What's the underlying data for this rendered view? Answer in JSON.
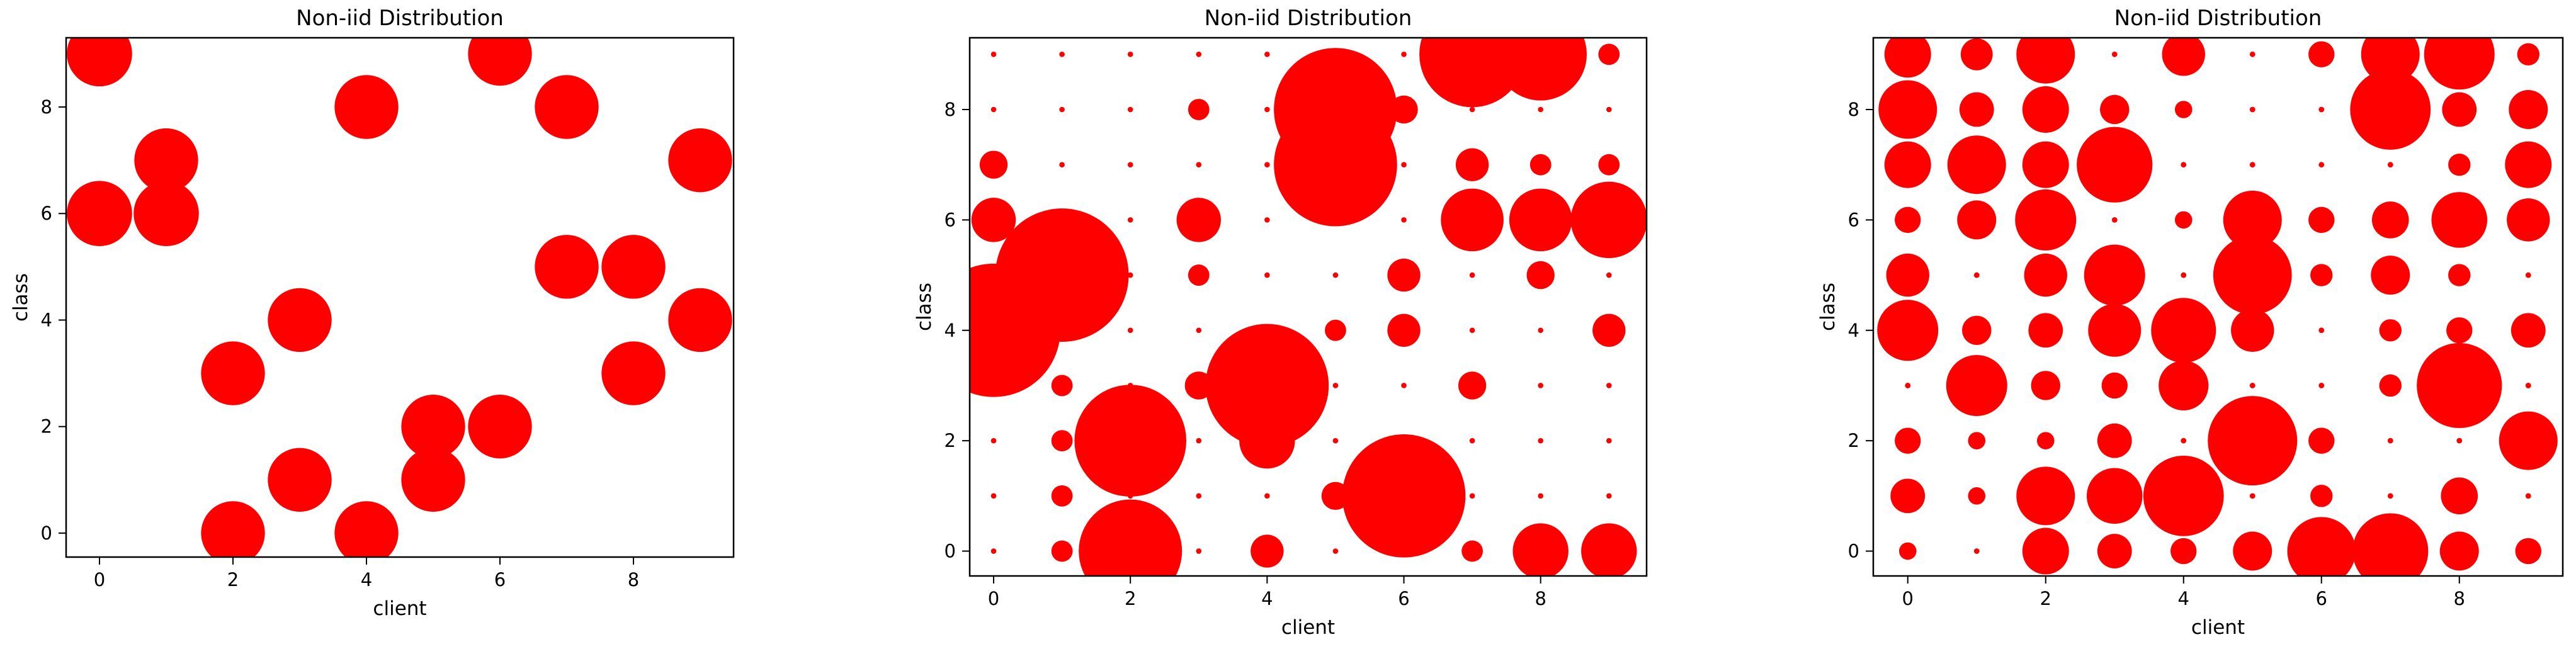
{
  "colors": {
    "marker": "#ff0000",
    "axis": "#000000",
    "background": "#ffffff"
  },
  "chart_data": [
    {
      "type": "scatter",
      "title": "Non-iid Distribution",
      "xlabel": "client",
      "ylabel": "class",
      "xlim": [
        -0.5,
        9.5
      ],
      "ylim": [
        -0.45,
        9.3
      ],
      "xticks": [
        0,
        2,
        4,
        6,
        8
      ],
      "yticks": [
        0,
        2,
        4,
        6,
        8
      ],
      "grid": false,
      "marker_color": "#ff0000",
      "bubble_max_value": 1,
      "bubble_max_radius_data": 0.5,
      "bubble_min_radius_data": 0.07,
      "points": [
        {
          "x": 0,
          "y": 9,
          "value": 0.95
        },
        {
          "x": 0,
          "y": 6,
          "value": 0.95
        },
        {
          "x": 1,
          "y": 7,
          "value": 0.9
        },
        {
          "x": 1,
          "y": 6,
          "value": 0.95
        },
        {
          "x": 2,
          "y": 3,
          "value": 0.9
        },
        {
          "x": 2,
          "y": 0,
          "value": 0.9
        },
        {
          "x": 3,
          "y": 4,
          "value": 0.9
        },
        {
          "x": 3,
          "y": 1,
          "value": 0.9
        },
        {
          "x": 4,
          "y": 8,
          "value": 0.9
        },
        {
          "x": 4,
          "y": 0,
          "value": 0.9
        },
        {
          "x": 5,
          "y": 2,
          "value": 0.9
        },
        {
          "x": 5,
          "y": 1,
          "value": 0.9
        },
        {
          "x": 6,
          "y": 9,
          "value": 0.9
        },
        {
          "x": 6,
          "y": 2,
          "value": 0.9
        },
        {
          "x": 7,
          "y": 8,
          "value": 0.9
        },
        {
          "x": 7,
          "y": 5,
          "value": 0.9
        },
        {
          "x": 8,
          "y": 5,
          "value": 0.9
        },
        {
          "x": 8,
          "y": 3,
          "value": 0.9
        },
        {
          "x": 9,
          "y": 7,
          "value": 0.9
        },
        {
          "x": 9,
          "y": 4,
          "value": 0.9
        }
      ]
    },
    {
      "type": "scatter",
      "title": "Non-iid Distribution",
      "xlabel": "client",
      "ylabel": "class",
      "xlim": [
        -0.35,
        9.55
      ],
      "ylim": [
        -0.45,
        9.3
      ],
      "xticks": [
        0,
        2,
        4,
        6,
        8
      ],
      "yticks": [
        0,
        2,
        4,
        6,
        8
      ],
      "grid": false,
      "marker_color": "#ff0000",
      "bubble_max_value": 1,
      "bubble_max_radius_data": 1.2,
      "bubble_min_radius_data": 0.04,
      "points": [
        {
          "x": 0,
          "y": 9,
          "value": 0
        },
        {
          "x": 0,
          "y": 8,
          "value": 0
        },
        {
          "x": 0,
          "y": 7,
          "value": 0.02
        },
        {
          "x": 0,
          "y": 6,
          "value": 0.06
        },
        {
          "x": 0,
          "y": 5,
          "value": 0
        },
        {
          "x": 0,
          "y": 4,
          "value": 0.65
        },
        {
          "x": 0,
          "y": 3,
          "value": 0.01
        },
        {
          "x": 0,
          "y": 2,
          "value": 0
        },
        {
          "x": 0,
          "y": 1,
          "value": 0
        },
        {
          "x": 0,
          "y": 0,
          "value": 0
        },
        {
          "x": 1,
          "y": 9,
          "value": 0
        },
        {
          "x": 1,
          "y": 8,
          "value": 0
        },
        {
          "x": 1,
          "y": 7,
          "value": 0
        },
        {
          "x": 1,
          "y": 6,
          "value": 0
        },
        {
          "x": 1,
          "y": 5,
          "value": 0.65
        },
        {
          "x": 1,
          "y": 4,
          "value": 0
        },
        {
          "x": 1,
          "y": 3,
          "value": 0.01
        },
        {
          "x": 1,
          "y": 2,
          "value": 0.01
        },
        {
          "x": 1,
          "y": 1,
          "value": 0.01
        },
        {
          "x": 1,
          "y": 0,
          "value": 0.01
        },
        {
          "x": 2,
          "y": 9,
          "value": 0
        },
        {
          "x": 2,
          "y": 8,
          "value": 0
        },
        {
          "x": 2,
          "y": 7,
          "value": 0
        },
        {
          "x": 2,
          "y": 6,
          "value": 0
        },
        {
          "x": 2,
          "y": 5,
          "value": 0
        },
        {
          "x": 2,
          "y": 4,
          "value": 0
        },
        {
          "x": 2,
          "y": 3,
          "value": 0
        },
        {
          "x": 2,
          "y": 2,
          "value": 0.45
        },
        {
          "x": 2,
          "y": 1,
          "value": 0
        },
        {
          "x": 2,
          "y": 0,
          "value": 0.38
        },
        {
          "x": 3,
          "y": 9,
          "value": 0
        },
        {
          "x": 3,
          "y": 8,
          "value": 0.01
        },
        {
          "x": 3,
          "y": 7,
          "value": 0
        },
        {
          "x": 3,
          "y": 6,
          "value": 0.06
        },
        {
          "x": 3,
          "y": 5,
          "value": 0.01
        },
        {
          "x": 3,
          "y": 4,
          "value": 0
        },
        {
          "x": 3,
          "y": 3,
          "value": 0.02
        },
        {
          "x": 3,
          "y": 2,
          "value": 0
        },
        {
          "x": 3,
          "y": 1,
          "value": 0
        },
        {
          "x": 3,
          "y": 0,
          "value": 0
        },
        {
          "x": 4,
          "y": 9,
          "value": 0
        },
        {
          "x": 4,
          "y": 8,
          "value": 0
        },
        {
          "x": 4,
          "y": 7,
          "value": 0
        },
        {
          "x": 4,
          "y": 6,
          "value": 0
        },
        {
          "x": 4,
          "y": 5,
          "value": 0
        },
        {
          "x": 4,
          "y": 4,
          "value": 0
        },
        {
          "x": 4,
          "y": 3,
          "value": 0.55
        },
        {
          "x": 4,
          "y": 2,
          "value": 0.1
        },
        {
          "x": 4,
          "y": 1,
          "value": 0
        },
        {
          "x": 4,
          "y": 0,
          "value": 0.03
        },
        {
          "x": 5,
          "y": 9,
          "value": 0
        },
        {
          "x": 5,
          "y": 8,
          "value": 0.55
        },
        {
          "x": 5,
          "y": 7,
          "value": 0.55
        },
        {
          "x": 5,
          "y": 6,
          "value": 0
        },
        {
          "x": 5,
          "y": 5,
          "value": 0
        },
        {
          "x": 5,
          "y": 4,
          "value": 0.01
        },
        {
          "x": 5,
          "y": 3,
          "value": 0
        },
        {
          "x": 5,
          "y": 2,
          "value": 0
        },
        {
          "x": 5,
          "y": 1,
          "value": 0.02
        },
        {
          "x": 5,
          "y": 0,
          "value": 0
        },
        {
          "x": 6,
          "y": 9,
          "value": 0
        },
        {
          "x": 6,
          "y": 8,
          "value": 0.02
        },
        {
          "x": 6,
          "y": 7,
          "value": 0
        },
        {
          "x": 6,
          "y": 6,
          "value": 0
        },
        {
          "x": 6,
          "y": 5,
          "value": 0.03
        },
        {
          "x": 6,
          "y": 4,
          "value": 0.03
        },
        {
          "x": 6,
          "y": 3,
          "value": 0
        },
        {
          "x": 6,
          "y": 2,
          "value": 0
        },
        {
          "x": 6,
          "y": 1,
          "value": 0.55
        },
        {
          "x": 6,
          "y": 0,
          "value": 0
        },
        {
          "x": 7,
          "y": 9,
          "value": 0.4
        },
        {
          "x": 7,
          "y": 8,
          "value": 0
        },
        {
          "x": 7,
          "y": 7,
          "value": 0.03
        },
        {
          "x": 7,
          "y": 6,
          "value": 0.13
        },
        {
          "x": 7,
          "y": 5,
          "value": 0
        },
        {
          "x": 7,
          "y": 4,
          "value": 0
        },
        {
          "x": 7,
          "y": 3,
          "value": 0.02
        },
        {
          "x": 7,
          "y": 2,
          "value": 0
        },
        {
          "x": 7,
          "y": 1,
          "value": 0
        },
        {
          "x": 7,
          "y": 0,
          "value": 0.01
        },
        {
          "x": 8,
          "y": 9,
          "value": 0.3
        },
        {
          "x": 8,
          "y": 8,
          "value": 0
        },
        {
          "x": 8,
          "y": 7,
          "value": 0.01
        },
        {
          "x": 8,
          "y": 6,
          "value": 0.13
        },
        {
          "x": 8,
          "y": 5,
          "value": 0.02
        },
        {
          "x": 8,
          "y": 4,
          "value": 0
        },
        {
          "x": 8,
          "y": 3,
          "value": 0
        },
        {
          "x": 8,
          "y": 2,
          "value": 0
        },
        {
          "x": 8,
          "y": 1,
          "value": 0
        },
        {
          "x": 8,
          "y": 0,
          "value": 0.1
        },
        {
          "x": 9,
          "y": 9,
          "value": 0.01
        },
        {
          "x": 9,
          "y": 8,
          "value": 0
        },
        {
          "x": 9,
          "y": 7,
          "value": 0.01
        },
        {
          "x": 9,
          "y": 6,
          "value": 0.2
        },
        {
          "x": 9,
          "y": 5,
          "value": 0
        },
        {
          "x": 9,
          "y": 4,
          "value": 0.03
        },
        {
          "x": 9,
          "y": 3,
          "value": 0
        },
        {
          "x": 9,
          "y": 2,
          "value": 0
        },
        {
          "x": 9,
          "y": 1,
          "value": 0
        },
        {
          "x": 9,
          "y": 0,
          "value": 0.1
        }
      ]
    },
    {
      "type": "scatter",
      "title": "Non-iid Distribution",
      "xlabel": "client",
      "ylabel": "class",
      "xlim": [
        -0.5,
        9.5
      ],
      "ylim": [
        -0.45,
        9.3
      ],
      "xticks": [
        0,
        2,
        4,
        6,
        8
      ],
      "yticks": [
        0,
        2,
        4,
        6,
        8
      ],
      "grid": false,
      "marker_color": "#ff0000",
      "bubble_max_value": 1,
      "bubble_max_radius_data": 0.9,
      "bubble_min_radius_data": 0.04,
      "points": [
        {
          "x": 0,
          "y": 9,
          "value": 0.12
        },
        {
          "x": 0,
          "y": 8,
          "value": 0.2
        },
        {
          "x": 0,
          "y": 7,
          "value": 0.12
        },
        {
          "x": 0,
          "y": 6,
          "value": 0.03
        },
        {
          "x": 0,
          "y": 5,
          "value": 0.1
        },
        {
          "x": 0,
          "y": 4,
          "value": 0.22
        },
        {
          "x": 0,
          "y": 3,
          "value": 0
        },
        {
          "x": 0,
          "y": 2,
          "value": 0.03
        },
        {
          "x": 0,
          "y": 1,
          "value": 0.06
        },
        {
          "x": 0,
          "y": 0,
          "value": 0.01
        },
        {
          "x": 1,
          "y": 9,
          "value": 0.05
        },
        {
          "x": 1,
          "y": 8,
          "value": 0.06
        },
        {
          "x": 1,
          "y": 7,
          "value": 0.2
        },
        {
          "x": 1,
          "y": 6,
          "value": 0.08
        },
        {
          "x": 1,
          "y": 5,
          "value": 0
        },
        {
          "x": 1,
          "y": 4,
          "value": 0.04
        },
        {
          "x": 1,
          "y": 3,
          "value": 0.22
        },
        {
          "x": 1,
          "y": 2,
          "value": 0.01
        },
        {
          "x": 1,
          "y": 1,
          "value": 0.01
        },
        {
          "x": 1,
          "y": 0,
          "value": 0
        },
        {
          "x": 2,
          "y": 9,
          "value": 0.2
        },
        {
          "x": 2,
          "y": 8,
          "value": 0.12
        },
        {
          "x": 2,
          "y": 7,
          "value": 0.12
        },
        {
          "x": 2,
          "y": 6,
          "value": 0.22
        },
        {
          "x": 2,
          "y": 5,
          "value": 0.1
        },
        {
          "x": 2,
          "y": 4,
          "value": 0.06
        },
        {
          "x": 2,
          "y": 3,
          "value": 0.04
        },
        {
          "x": 2,
          "y": 2,
          "value": 0.01
        },
        {
          "x": 2,
          "y": 1,
          "value": 0.2
        },
        {
          "x": 2,
          "y": 0,
          "value": 0.12
        },
        {
          "x": 3,
          "y": 9,
          "value": 0
        },
        {
          "x": 3,
          "y": 8,
          "value": 0.04
        },
        {
          "x": 3,
          "y": 7,
          "value": 0.35
        },
        {
          "x": 3,
          "y": 6,
          "value": 0
        },
        {
          "x": 3,
          "y": 5,
          "value": 0.22
        },
        {
          "x": 3,
          "y": 4,
          "value": 0.16
        },
        {
          "x": 3,
          "y": 3,
          "value": 0.03
        },
        {
          "x": 3,
          "y": 2,
          "value": 0.06
        },
        {
          "x": 3,
          "y": 1,
          "value": 0.18
        },
        {
          "x": 3,
          "y": 0,
          "value": 0.06
        },
        {
          "x": 4,
          "y": 9,
          "value": 0.1
        },
        {
          "x": 4,
          "y": 8,
          "value": 0.01
        },
        {
          "x": 4,
          "y": 7,
          "value": 0
        },
        {
          "x": 4,
          "y": 6,
          "value": 0.01
        },
        {
          "x": 4,
          "y": 5,
          "value": 0
        },
        {
          "x": 4,
          "y": 4,
          "value": 0.25
        },
        {
          "x": 4,
          "y": 3,
          "value": 0.14
        },
        {
          "x": 4,
          "y": 2,
          "value": 0
        },
        {
          "x": 4,
          "y": 1,
          "value": 0.4
        },
        {
          "x": 4,
          "y": 0,
          "value": 0.03
        },
        {
          "x": 5,
          "y": 9,
          "value": 0
        },
        {
          "x": 5,
          "y": 8,
          "value": 0
        },
        {
          "x": 5,
          "y": 7,
          "value": 0
        },
        {
          "x": 5,
          "y": 6,
          "value": 0.2
        },
        {
          "x": 5,
          "y": 5,
          "value": 0.38
        },
        {
          "x": 5,
          "y": 4,
          "value": 0.1
        },
        {
          "x": 5,
          "y": 3,
          "value": 0
        },
        {
          "x": 5,
          "y": 2,
          "value": 0.5
        },
        {
          "x": 5,
          "y": 1,
          "value": 0
        },
        {
          "x": 5,
          "y": 0,
          "value": 0.08
        },
        {
          "x": 6,
          "y": 9,
          "value": 0.03
        },
        {
          "x": 6,
          "y": 8,
          "value": 0
        },
        {
          "x": 6,
          "y": 7,
          "value": 0
        },
        {
          "x": 6,
          "y": 6,
          "value": 0.03
        },
        {
          "x": 6,
          "y": 5,
          "value": 0.02
        },
        {
          "x": 6,
          "y": 4,
          "value": 0
        },
        {
          "x": 6,
          "y": 3,
          "value": 0
        },
        {
          "x": 6,
          "y": 2,
          "value": 0.03
        },
        {
          "x": 6,
          "y": 1,
          "value": 0.02
        },
        {
          "x": 6,
          "y": 0,
          "value": 0.28
        },
        {
          "x": 7,
          "y": 9,
          "value": 0.2
        },
        {
          "x": 7,
          "y": 8,
          "value": 0.4
        },
        {
          "x": 7,
          "y": 7,
          "value": 0
        },
        {
          "x": 7,
          "y": 6,
          "value": 0.07
        },
        {
          "x": 7,
          "y": 5,
          "value": 0.08
        },
        {
          "x": 7,
          "y": 4,
          "value": 0.02
        },
        {
          "x": 7,
          "y": 3,
          "value": 0.02
        },
        {
          "x": 7,
          "y": 2,
          "value": 0
        },
        {
          "x": 7,
          "y": 1,
          "value": 0
        },
        {
          "x": 7,
          "y": 0,
          "value": 0.35
        },
        {
          "x": 8,
          "y": 9,
          "value": 0.3
        },
        {
          "x": 8,
          "y": 8,
          "value": 0.06
        },
        {
          "x": 8,
          "y": 7,
          "value": 0.02
        },
        {
          "x": 8,
          "y": 6,
          "value": 0.18
        },
        {
          "x": 8,
          "y": 5,
          "value": 0.02
        },
        {
          "x": 8,
          "y": 4,
          "value": 0.03
        },
        {
          "x": 8,
          "y": 3,
          "value": 0.45
        },
        {
          "x": 8,
          "y": 2,
          "value": 0
        },
        {
          "x": 8,
          "y": 1,
          "value": 0.07
        },
        {
          "x": 8,
          "y": 0,
          "value": 0.08
        },
        {
          "x": 9,
          "y": 9,
          "value": 0.02
        },
        {
          "x": 9,
          "y": 8,
          "value": 0.08
        },
        {
          "x": 9,
          "y": 7,
          "value": 0.12
        },
        {
          "x": 9,
          "y": 6,
          "value": 0.1
        },
        {
          "x": 9,
          "y": 5,
          "value": 0
        },
        {
          "x": 9,
          "y": 4,
          "value": 0.06
        },
        {
          "x": 9,
          "y": 3,
          "value": 0
        },
        {
          "x": 9,
          "y": 2,
          "value": 0.2
        },
        {
          "x": 9,
          "y": 1,
          "value": 0
        },
        {
          "x": 9,
          "y": 0,
          "value": 0.03
        }
      ]
    }
  ]
}
